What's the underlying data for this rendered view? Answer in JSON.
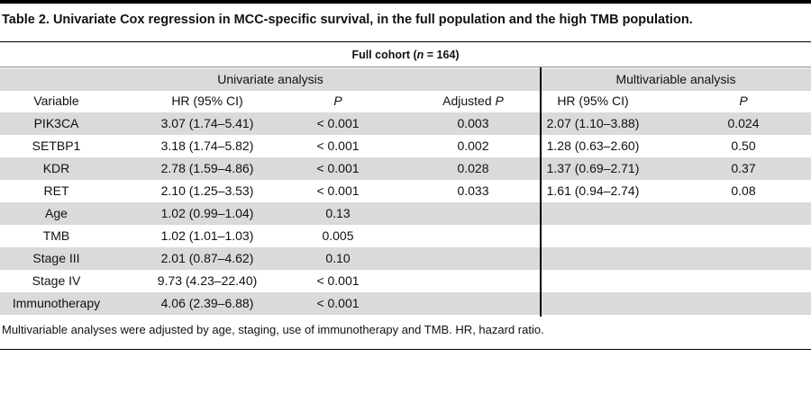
{
  "header": {
    "title": "Table 2. Univariate Cox regression in MCC-specific survival, in the full population and the high TMB population."
  },
  "table": {
    "cohort": [
      "Full cohort (",
      "n",
      " = 164)"
    ],
    "groups": [
      "Univariate analysis",
      "Multivariable analysis"
    ],
    "columns": {
      "variable": [
        "Variable"
      ],
      "hr": [
        "HR (95% CI)"
      ],
      "p": [
        "",
        "P"
      ],
      "adjusted_p": [
        "Adjusted ",
        "P"
      ],
      "multi_hr": [
        "HR (95% CI)"
      ],
      "multi_p": [
        "",
        "P"
      ]
    },
    "rows": [
      {
        "variable": "PIK3CA",
        "hr": "3.07 (1.74–5.41)",
        "p": "< 0.001",
        "adjusted_p": "0.003",
        "multi_hr": "2.07 (1.10–3.88)",
        "multi_p": "0.024"
      },
      {
        "variable": "SETBP1",
        "hr": "3.18 (1.74–5.82)",
        "p": "< 0.001",
        "adjusted_p": "0.002",
        "multi_hr": "1.28 (0.63–2.60)",
        "multi_p": "0.50"
      },
      {
        "variable": "KDR",
        "hr": "2.78 (1.59–4.86)",
        "p": "< 0.001",
        "adjusted_p": "0.028",
        "multi_hr": "1.37 (0.69–2.71)",
        "multi_p": "0.37"
      },
      {
        "variable": "RET",
        "hr": "2.10 (1.25–3.53)",
        "p": "< 0.001",
        "adjusted_p": "0.033",
        "multi_hr": "1.61 (0.94–2.74)",
        "multi_p": "0.08"
      },
      {
        "variable": "Age",
        "hr": "1.02 (0.99–1.04)",
        "p": "0.13"
      },
      {
        "variable": "TMB",
        "hr": "1.02 (1.01–1.03)",
        "p": "0.005"
      },
      {
        "variable": "Stage III",
        "hr": "2.01 (0.87–4.62)",
        "p": "0.10"
      },
      {
        "variable": "Stage IV",
        "hr": "9.73 (4.23–22.40)",
        "p": "< 0.001"
      },
      {
        "variable": "Immunotherapy",
        "hr": "4.06 (2.39–6.88)",
        "p": "< 0.001"
      }
    ]
  },
  "footnote": "Multivariable analyses were adjusted by age, staging, use of immunotherapy and TMB. HR, hazard ratio."
}
